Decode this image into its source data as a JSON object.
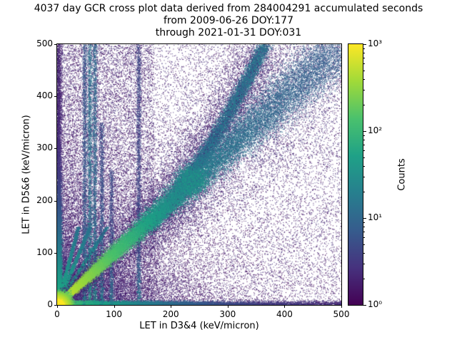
{
  "title": {
    "line1": "4037 day GCR cross plot data derived from 284004291 accumulated seconds",
    "line2": "from 2009-06-26 DOY:177",
    "line3": "through 2021-01-31 DOY:031"
  },
  "chart_data": {
    "type": "heatmap",
    "title": "4037 day GCR cross plot data derived from 284004291 accumulated seconds from 2009-06-26 DOY:177 through 2021-01-31 DOY:031",
    "xlabel": "LET in D3&4 (keV/micron)",
    "ylabel": "LET in D5&6 (keV/micron)",
    "xlim": [
      0,
      500
    ],
    "ylim": [
      0,
      500
    ],
    "xticks": [
      0,
      100,
      200,
      300,
      400,
      500
    ],
    "yticks": [
      0,
      100,
      200,
      300,
      400,
      500
    ],
    "grid": false,
    "colorbar": {
      "label": "Counts",
      "scale": "log",
      "min": 1,
      "max": 1000,
      "ticks": [
        "10⁰",
        "10¹",
        "10²",
        "10³"
      ],
      "colormap": "viridis"
    },
    "colormap_stops": [
      "#440154",
      "#46327e",
      "#365c8d",
      "#277f8e",
      "#1fa187",
      "#4ac16d",
      "#a0da39",
      "#fde725"
    ],
    "features": [
      {
        "kind": "origin_hotspot",
        "x": 0,
        "y": 0,
        "extent_kev": 25,
        "peak_counts": 1000,
        "note": "bright yellow core at low LET near origin"
      },
      {
        "kind": "diagonal_band",
        "from": [
          0,
          0
        ],
        "to": [
          500,
          500
        ],
        "peak_counts": 700,
        "note": "main y=x correlation ridge, green near origin fading to blue at high LET"
      },
      {
        "kind": "horizontal_band",
        "y": 3,
        "x_from": 0,
        "x_to": 500,
        "counts": 100,
        "note": "dense band hugging the x-axis"
      },
      {
        "kind": "vertical_axis_band",
        "x": 2,
        "y_from": 0,
        "y_to": 500,
        "counts": 70,
        "note": "dense band hugging the y-axis"
      },
      {
        "kind": "vertical_streaks",
        "x_positions": [
          48,
          57,
          66,
          78,
          95,
          143
        ],
        "counts": [
          6,
          12,
          9,
          5,
          4,
          4
        ],
        "heights": [
          500,
          500,
          500,
          350,
          260,
          500
        ],
        "note": "vertical streaks near x≈50-145, brightest feet below y≈100"
      },
      {
        "kind": "fan_lines",
        "slopes": [
          1.7,
          2.6,
          4.0
        ],
        "y_max": 150,
        "counts": 80,
        "note": "steep bright tracks fanning up from the origin"
      },
      {
        "kind": "curved_track",
        "from": [
          150,
          150
        ],
        "to": [
          365,
          500
        ],
        "exponent": 1.35,
        "peak_counts": 20,
        "note": "secondary band curving above the diagonal toward (365,500)"
      },
      {
        "kind": "hotspot",
        "x": 235,
        "y": 238,
        "sigma": 12,
        "counts": 45,
        "note": "enhanced teal blob on the diagonal near (235,238)"
      },
      {
        "kind": "background_noise",
        "counts_range": [
          1,
          3
        ],
        "note": "sparse single-count purple speckle everywhere, denser on left third"
      }
    ]
  }
}
